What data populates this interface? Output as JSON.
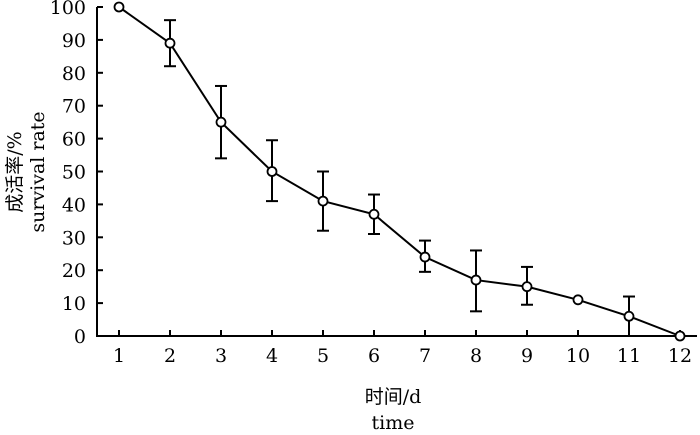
{
  "chart_data": {
    "type": "line",
    "xlabel_cn": "时间/d",
    "xlabel_en": "time",
    "ylabel_cn": "成活率/%",
    "ylabel_en": "survival rate",
    "xlim": [
      1,
      12
    ],
    "ylim": [
      0,
      100
    ],
    "x_ticks": [
      1,
      2,
      3,
      4,
      5,
      6,
      7,
      8,
      9,
      10,
      11,
      12
    ],
    "y_ticks": [
      0,
      10,
      20,
      30,
      40,
      50,
      60,
      70,
      80,
      90,
      100
    ],
    "grid": false,
    "legend": "none",
    "series": [
      {
        "x": [
          1,
          2,
          3,
          4,
          5,
          6,
          7,
          8,
          9,
          10,
          11,
          12
        ],
        "values": [
          100,
          89,
          65,
          50,
          41,
          37,
          24,
          17,
          15,
          11,
          6,
          0
        ],
        "error_low": [
          null,
          82,
          54,
          41,
          32,
          31,
          19.5,
          7.5,
          9.5,
          null,
          0,
          null
        ],
        "error_high": [
          null,
          96,
          76,
          59.5,
          50,
          43,
          29,
          26,
          21,
          null,
          12,
          null
        ]
      }
    ]
  }
}
